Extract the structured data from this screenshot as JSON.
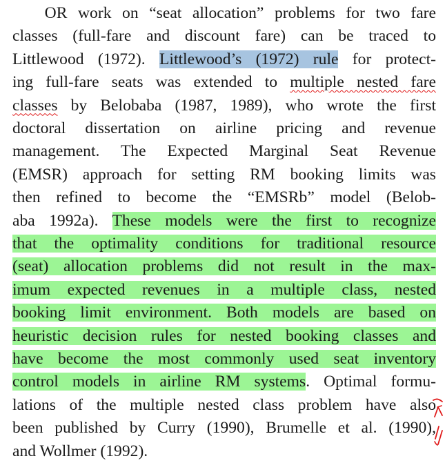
{
  "paragraph": {
    "lines": [
      {
        "segments": [
          {
            "text": "   OR work on “seat allocation” problems for two fare"
          }
        ]
      },
      {
        "segments": [
          {
            "text": "classes (full-fare and discount fare) can be traced to"
          }
        ]
      },
      {
        "segments": [
          {
            "text": "Littlewood (1972). "
          },
          {
            "text": "Littlewood’s (1972) rule",
            "style": "blue"
          },
          {
            "text": " for protect-"
          }
        ]
      },
      {
        "segments": [
          {
            "text": "ing full-fare seats was extended to "
          },
          {
            "text": "multiple nested fare",
            "style": "squiggle"
          }
        ]
      },
      {
        "segments": [
          {
            "text": "classes",
            "style": "squiggle"
          },
          {
            "text": " by Belobaba (1987, 1989), who wrote the first"
          }
        ]
      },
      {
        "segments": [
          {
            "text": "doctoral dissertation on airline pricing and revenue"
          }
        ]
      },
      {
        "segments": [
          {
            "text": "management. The Expected Marginal Seat Revenue"
          }
        ]
      },
      {
        "segments": [
          {
            "text": "(EMSR) approach for setting RM booking limits was"
          }
        ]
      },
      {
        "segments": [
          {
            "text": "then refined to become the “EMSRb” model (Belob-"
          }
        ]
      },
      {
        "segments": [
          {
            "text": "aba 1992a). "
          },
          {
            "text": "These models were the first to recognize",
            "style": "green"
          }
        ]
      },
      {
        "segments": [
          {
            "text": "that the optimality conditions for traditional resource",
            "style": "green"
          }
        ]
      },
      {
        "segments": [
          {
            "text": "(seat) allocation problems did not result in the max-",
            "style": "green"
          }
        ]
      },
      {
        "segments": [
          {
            "text": "imum expected revenues in a multiple class, nested",
            "style": "green"
          }
        ]
      },
      {
        "segments": [
          {
            "text": "booking limit environment. Both models are based on",
            "style": "green"
          }
        ]
      },
      {
        "segments": [
          {
            "text": "heuristic decision rules for nested booking classes and",
            "style": "green"
          }
        ]
      },
      {
        "segments": [
          {
            "text": "have become the most commonly used seat inventory",
            "style": "green"
          }
        ]
      },
      {
        "segments": [
          {
            "text": "control models in airline RM systems",
            "style": "green"
          },
          {
            "text": ". Optimal formu-"
          }
        ]
      },
      {
        "segments": [
          {
            "text": "lations of the multiple nested class problem have also"
          }
        ]
      },
      {
        "segments": [
          {
            "text": "been published by Curry (1990), Brumelle et al. (1990),"
          }
        ]
      },
      {
        "segments": [
          {
            "text": "and Wollmer (1992)."
          }
        ],
        "last": true
      }
    ]
  },
  "colors": {
    "blue_highlight": "#a7c4e0",
    "green_highlight": "#9cf595",
    "annotation_red": "#e01a1a"
  },
  "annotations": [
    {
      "type": "margin-caret-mark",
      "icon": "handwritten-caret-icon"
    },
    {
      "type": "margin-slash-mark",
      "icon": "handwritten-slash-icon"
    }
  ]
}
